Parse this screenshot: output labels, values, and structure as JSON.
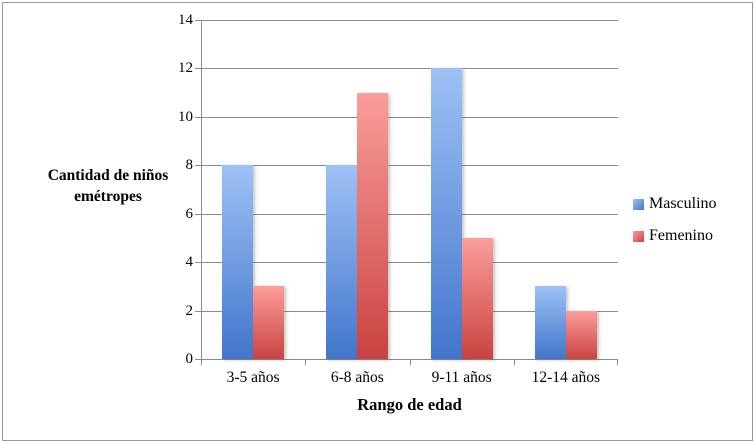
{
  "chart_data": {
    "type": "bar",
    "title": "",
    "categories": [
      "3-5 años",
      "6-8 años",
      "9-11 años",
      "12-14 años"
    ],
    "series": [
      {
        "name": "Masculino",
        "values": [
          8,
          8,
          12,
          3
        ],
        "color_top": "#9ec1f5",
        "color_bottom": "#4276cc"
      },
      {
        "name": "Femenino",
        "values": [
          3,
          11,
          5,
          2
        ],
        "color_top": "#fb9d9a",
        "color_bottom": "#c94340"
      }
    ],
    "xlabel": "Rango de edad",
    "ylabel": "Cantidad de niños emétropes",
    "ylim": [
      0,
      14
    ],
    "yticks": [
      0,
      2,
      4,
      6,
      8,
      10,
      12,
      14
    ],
    "grid": true,
    "legend_position": "right"
  },
  "colors": {
    "axis": "#8a8a8a",
    "grid": "#8a8a8a",
    "text": "#000000",
    "frame": "#979797",
    "background": "#ffffff"
  }
}
